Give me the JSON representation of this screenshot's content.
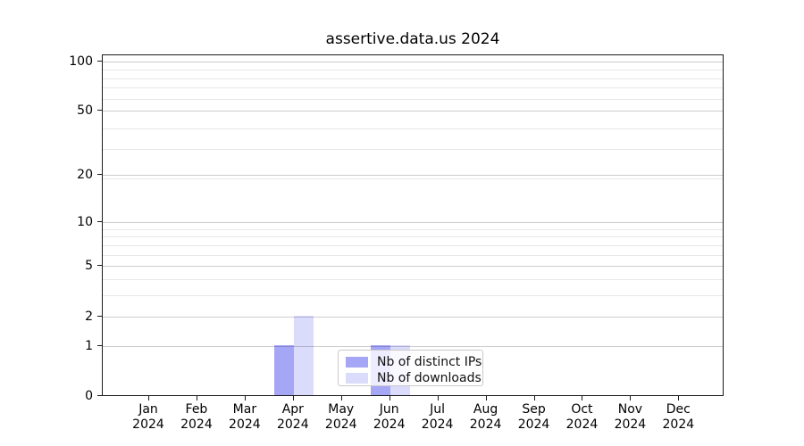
{
  "chart_data": {
    "type": "bar",
    "title": "assertive.data.us 2024",
    "categories": [
      "Jan",
      "Feb",
      "Mar",
      "Apr",
      "May",
      "Jun",
      "Jul",
      "Aug",
      "Sep",
      "Oct",
      "Nov",
      "Dec"
    ],
    "x_tick_second_line": "2024",
    "series": [
      {
        "name": "Nb of distinct IPs",
        "color": "rgba(0,0,230,0.35)",
        "values": [
          0,
          0,
          0,
          1,
          0,
          1,
          0,
          0,
          0,
          0,
          0,
          0
        ]
      },
      {
        "name": "Nb of downloads",
        "color": "rgba(0,0,230,0.14)",
        "values": [
          0,
          0,
          0,
          2,
          0,
          1,
          0,
          0,
          0,
          0,
          0,
          0
        ]
      }
    ],
    "xlabel": "",
    "ylabel": "",
    "y_scale": "log1p",
    "y_ticks": [
      0,
      1,
      2,
      5,
      10,
      20,
      50,
      100
    ],
    "ylim": [
      0,
      110
    ],
    "minor_grid_log1p_values": [
      4,
      5,
      7,
      8,
      9,
      10,
      20,
      30,
      40,
      60,
      70,
      80,
      90
    ],
    "grid": true,
    "legend_position": "lower-center-inside"
  },
  "style": {
    "major_grid_color": "#cccccc",
    "minor_grid_color": "#e8e8e8",
    "axis_color": "#1a1a1a",
    "background_color": "#ffffff"
  }
}
